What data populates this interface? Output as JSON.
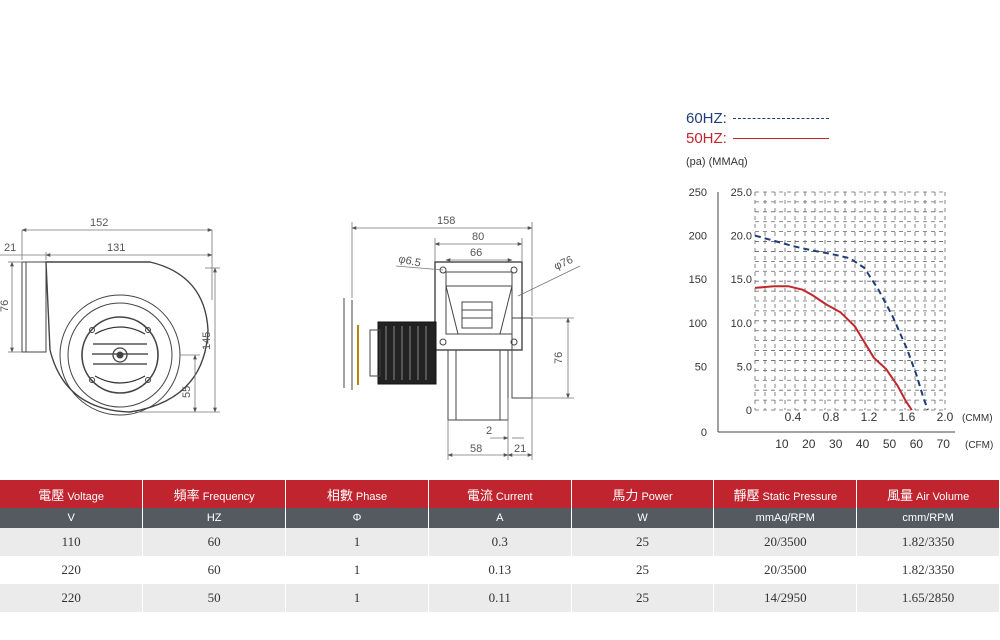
{
  "side_view": {
    "dims": {
      "overall_width": "152",
      "offset": "21",
      "body_width": "131",
      "outlet": "76",
      "height": "145",
      "center": "55"
    }
  },
  "front_view": {
    "dims": {
      "overall": "158",
      "flange": "80",
      "flange_inner": "66",
      "hole": "φ6.5",
      "circle": "φ76",
      "outlet": "76",
      "gap": "2",
      "body": "58",
      "offset": "21"
    }
  },
  "legend": {
    "hz60": "60HZ:",
    "hz50": "50HZ:",
    "units": "(pa) (MMAq)",
    "color_60": "#1f3d7a",
    "color_50": "#c0282e"
  },
  "chart_data": {
    "type": "line",
    "title": "",
    "x_labels_cmm": [
      "0.4",
      "0.8",
      "1.2",
      "1.6",
      "2.0"
    ],
    "x_unit_cmm": "(CMM)",
    "x_labels_cfm": [
      "10",
      "20",
      "30",
      "40",
      "50",
      "60",
      "70"
    ],
    "x_unit_cfm": "(CFM)",
    "y_labels_mmaq": [
      "0",
      "5.0",
      "10.0",
      "15.0",
      "20.0",
      "25.0"
    ],
    "y_labels_pa": [
      "0",
      "50",
      "100",
      "150",
      "200",
      "250"
    ],
    "xlim_cmm": [
      0,
      2.0
    ],
    "ylim_mmaq": [
      0,
      25
    ],
    "grid": true,
    "series": [
      {
        "name": "60HZ",
        "style": "dashed",
        "color": "#1f3d7a",
        "x": [
          0,
          0.2,
          0.4,
          0.6,
          0.8,
          1.0,
          1.15,
          1.3,
          1.45,
          1.6,
          1.7,
          1.77,
          1.82
        ],
        "y": [
          20.0,
          19.4,
          18.8,
          18.3,
          17.9,
          17.4,
          16.3,
          13.8,
          10.7,
          7.0,
          4.0,
          1.5,
          0
        ]
      },
      {
        "name": "50HZ",
        "style": "solid",
        "color": "#c0282e",
        "x": [
          0,
          0.2,
          0.35,
          0.5,
          0.6,
          0.75,
          0.9,
          1.05,
          1.15,
          1.25,
          1.38,
          1.5,
          1.59,
          1.65
        ],
        "y": [
          14.0,
          14.2,
          14.2,
          13.8,
          13.2,
          12.1,
          11.2,
          9.6,
          7.8,
          6.0,
          4.7,
          2.8,
          1.0,
          0
        ]
      }
    ]
  },
  "spec_table": {
    "headers": [
      {
        "cn": "電壓",
        "en": "Voltage"
      },
      {
        "cn": "頻率",
        "en": "Frequency"
      },
      {
        "cn": "相數",
        "en": "Phase"
      },
      {
        "cn": "電流",
        "en": "Current"
      },
      {
        "cn": "馬力",
        "en": "Power"
      },
      {
        "cn": "靜壓",
        "en": "Static Pressure"
      },
      {
        "cn": "風量",
        "en": "Air Volume"
      }
    ],
    "units": [
      "V",
      "HZ",
      "Φ",
      "A",
      "W",
      "mmAq/RPM",
      "cmm/RPM"
    ],
    "rows": [
      [
        "110",
        "60",
        "1",
        "0.3",
        "25",
        "20/3500",
        "1.82/3350"
      ],
      [
        "220",
        "60",
        "1",
        "0.13",
        "25",
        "20/3500",
        "1.82/3350"
      ],
      [
        "220",
        "50",
        "1",
        "0.11",
        "25",
        "14/2950",
        "1.65/2850"
      ]
    ]
  }
}
